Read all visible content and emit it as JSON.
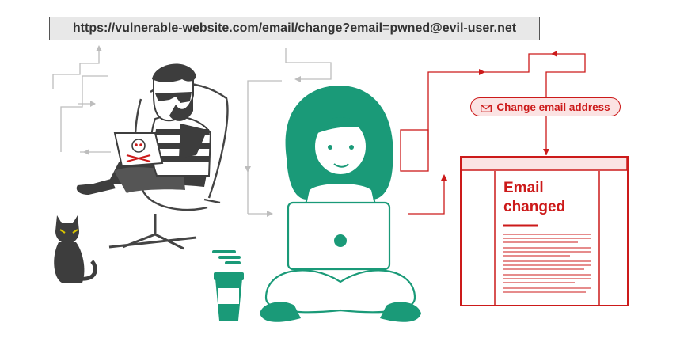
{
  "url_bar": {
    "url": "https://vulnerable-website.com/email/change?email=pwned@evil-user.net"
  },
  "action": {
    "label": "Change email address",
    "icon": "envelope-icon"
  },
  "result_page": {
    "title_line1": "Email",
    "title_line2": "changed"
  },
  "colors": {
    "attacker": "#3d3d3d",
    "victim": "#1a9a78",
    "alert": "#cc1a1a",
    "flow_gray": "#bbbbbb"
  }
}
